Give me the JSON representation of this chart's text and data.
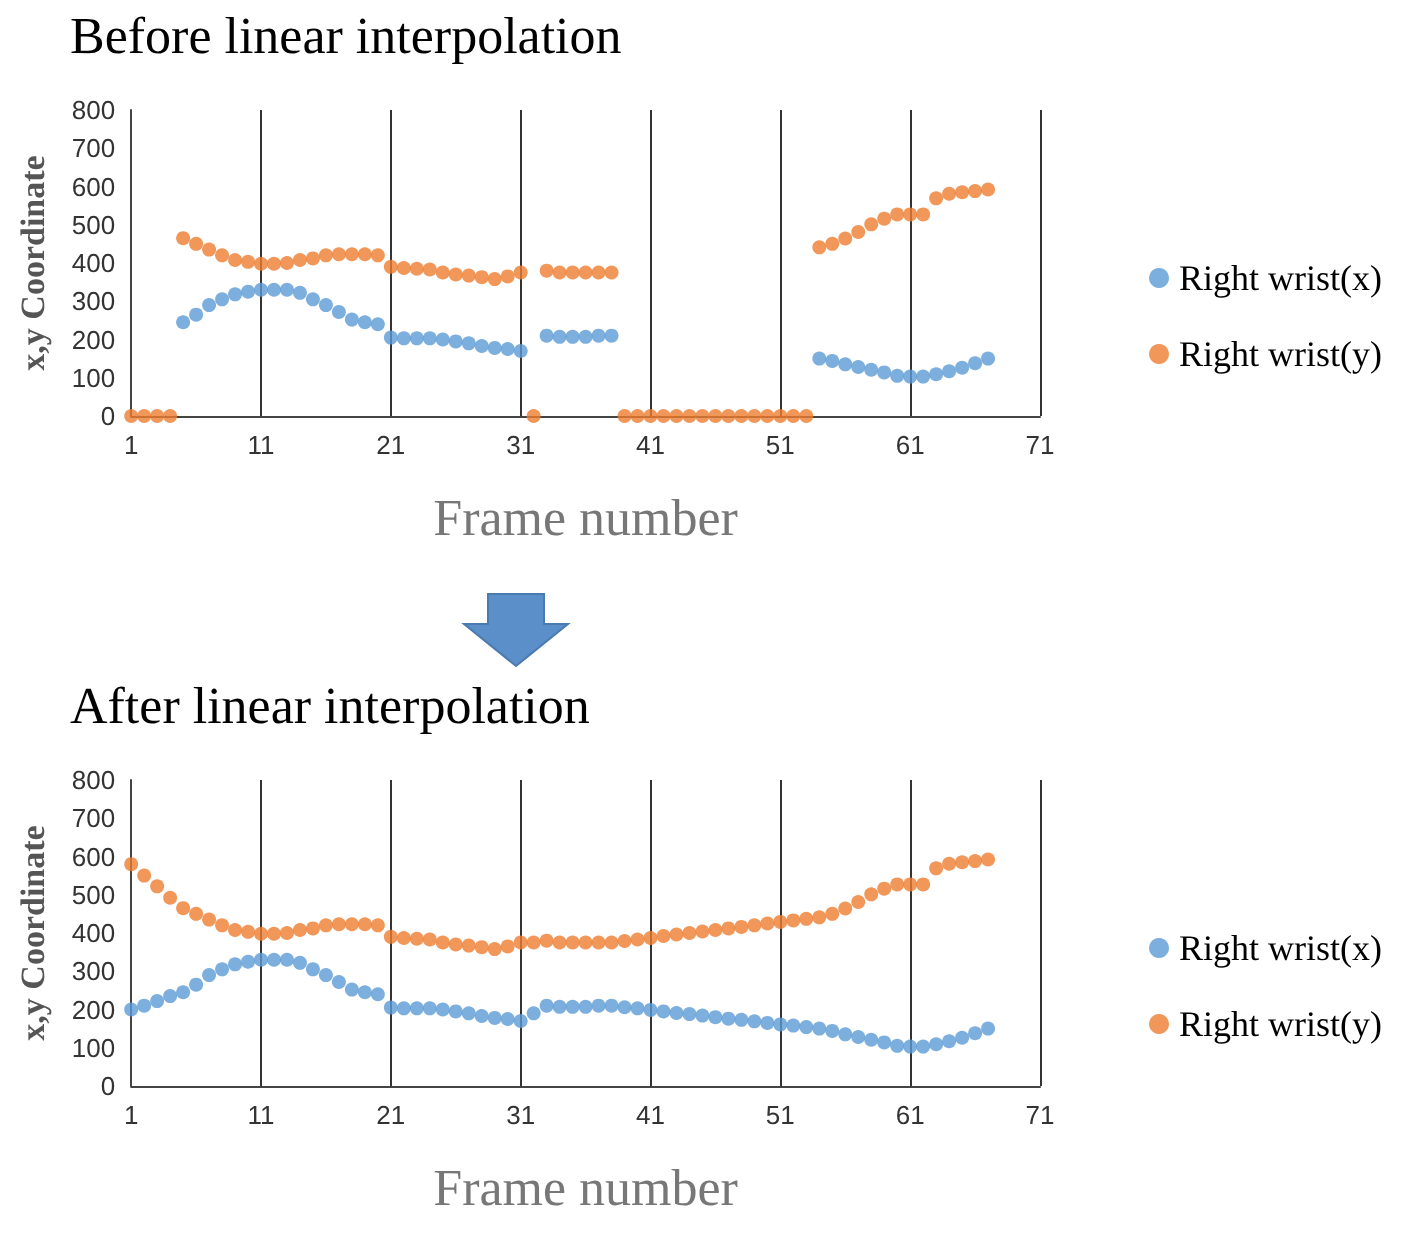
{
  "chart_data": [
    {
      "type": "scatter",
      "title": "Before linear interpolation",
      "xlabel": "Frame number",
      "ylabel": "x,y Coordinate",
      "xlim": [
        1,
        71
      ],
      "xticks": [
        1,
        11,
        21,
        31,
        41,
        51,
        61,
        71
      ],
      "ylim": [
        0,
        800
      ],
      "yticks": [
        0,
        100,
        200,
        300,
        400,
        500,
        600,
        700,
        800
      ],
      "grid": "x",
      "legend": "right",
      "marker": "circle",
      "x": [
        1,
        2,
        3,
        4,
        5,
        6,
        7,
        8,
        9,
        10,
        11,
        12,
        13,
        14,
        15,
        16,
        17,
        18,
        19,
        20,
        21,
        22,
        23,
        24,
        25,
        26,
        27,
        28,
        29,
        30,
        31,
        32,
        33,
        34,
        35,
        36,
        37,
        38,
        39,
        40,
        41,
        42,
        43,
        44,
        45,
        46,
        47,
        48,
        49,
        50,
        51,
        52,
        53,
        54,
        55,
        56,
        57,
        58,
        59,
        60,
        61,
        62,
        63,
        64,
        65,
        66,
        67
      ],
      "series": [
        {
          "name": "Right wrist(x)",
          "color": "#5b9bd5",
          "values": [
            null,
            null,
            null,
            null,
            245,
            265,
            290,
            305,
            318,
            325,
            330,
            330,
            330,
            322,
            305,
            290,
            272,
            252,
            245,
            240,
            205,
            203,
            203,
            203,
            200,
            195,
            190,
            183,
            178,
            175,
            170,
            null,
            210,
            207,
            207,
            207,
            210,
            210,
            null,
            null,
            null,
            null,
            null,
            null,
            null,
            null,
            null,
            null,
            null,
            null,
            null,
            null,
            null,
            150,
            144,
            135,
            128,
            121,
            114,
            105,
            103,
            103,
            109,
            117,
            126,
            138,
            150
          ]
        },
        {
          "name": "Right wrist(y)",
          "color": "#ed7d31",
          "values": [
            0,
            0,
            0,
            0,
            465,
            450,
            435,
            420,
            408,
            403,
            398,
            398,
            400,
            408,
            412,
            420,
            423,
            423,
            423,
            420,
            390,
            387,
            385,
            383,
            375,
            370,
            367,
            363,
            358,
            365,
            375,
            0,
            380,
            375,
            375,
            375,
            375,
            375,
            0,
            0,
            0,
            0,
            0,
            0,
            0,
            0,
            0,
            0,
            0,
            0,
            0,
            0,
            0,
            441,
            450,
            464,
            481,
            501,
            516,
            527,
            527,
            527,
            569,
            581,
            585,
            588,
            592
          ]
        }
      ]
    },
    {
      "type": "scatter",
      "title": "After linear interpolation",
      "xlabel": "Frame number",
      "ylabel": "x,y Coordinate",
      "xlim": [
        1,
        71
      ],
      "xticks": [
        1,
        11,
        21,
        31,
        41,
        51,
        61,
        71
      ],
      "ylim": [
        0,
        800
      ],
      "yticks": [
        0,
        100,
        200,
        300,
        400,
        500,
        600,
        700,
        800
      ],
      "grid": "x",
      "legend": "right",
      "marker": "circle",
      "x": [
        1,
        2,
        3,
        4,
        5,
        6,
        7,
        8,
        9,
        10,
        11,
        12,
        13,
        14,
        15,
        16,
        17,
        18,
        19,
        20,
        21,
        22,
        23,
        24,
        25,
        26,
        27,
        28,
        29,
        30,
        31,
        32,
        33,
        34,
        35,
        36,
        37,
        38,
        39,
        40,
        41,
        42,
        43,
        44,
        45,
        46,
        47,
        48,
        49,
        50,
        51,
        52,
        53,
        54,
        55,
        56,
        57,
        58,
        59,
        60,
        61,
        62,
        63,
        64,
        65,
        66,
        67
      ],
      "series": [
        {
          "name": "Right wrist(x)",
          "color": "#5b9bd5",
          "values": [
            200,
            210,
            222,
            235,
            245,
            265,
            290,
            305,
            318,
            325,
            330,
            330,
            330,
            322,
            305,
            290,
            272,
            252,
            245,
            240,
            205,
            203,
            203,
            203,
            200,
            195,
            190,
            183,
            178,
            175,
            170,
            190,
            210,
            207,
            207,
            207,
            210,
            210,
            206,
            203,
            199,
            195,
            191,
            188,
            184,
            180,
            176,
            173,
            169,
            165,
            161,
            158,
            154,
            150,
            144,
            135,
            128,
            121,
            114,
            105,
            103,
            103,
            109,
            117,
            126,
            138,
            150
          ]
        },
        {
          "name": "Right wrist(y)",
          "color": "#ed7d31",
          "values": [
            580,
            550,
            522,
            492,
            465,
            450,
            435,
            420,
            408,
            403,
            398,
            398,
            400,
            408,
            412,
            420,
            423,
            423,
            423,
            420,
            390,
            387,
            385,
            383,
            375,
            370,
            367,
            363,
            358,
            365,
            375,
            375,
            380,
            375,
            375,
            375,
            375,
            375,
            379,
            383,
            387,
            392,
            396,
            400,
            404,
            408,
            412,
            416,
            420,
            425,
            429,
            433,
            437,
            441,
            450,
            464,
            481,
            501,
            516,
            527,
            527,
            527,
            569,
            581,
            585,
            588,
            592
          ]
        }
      ]
    }
  ]
}
